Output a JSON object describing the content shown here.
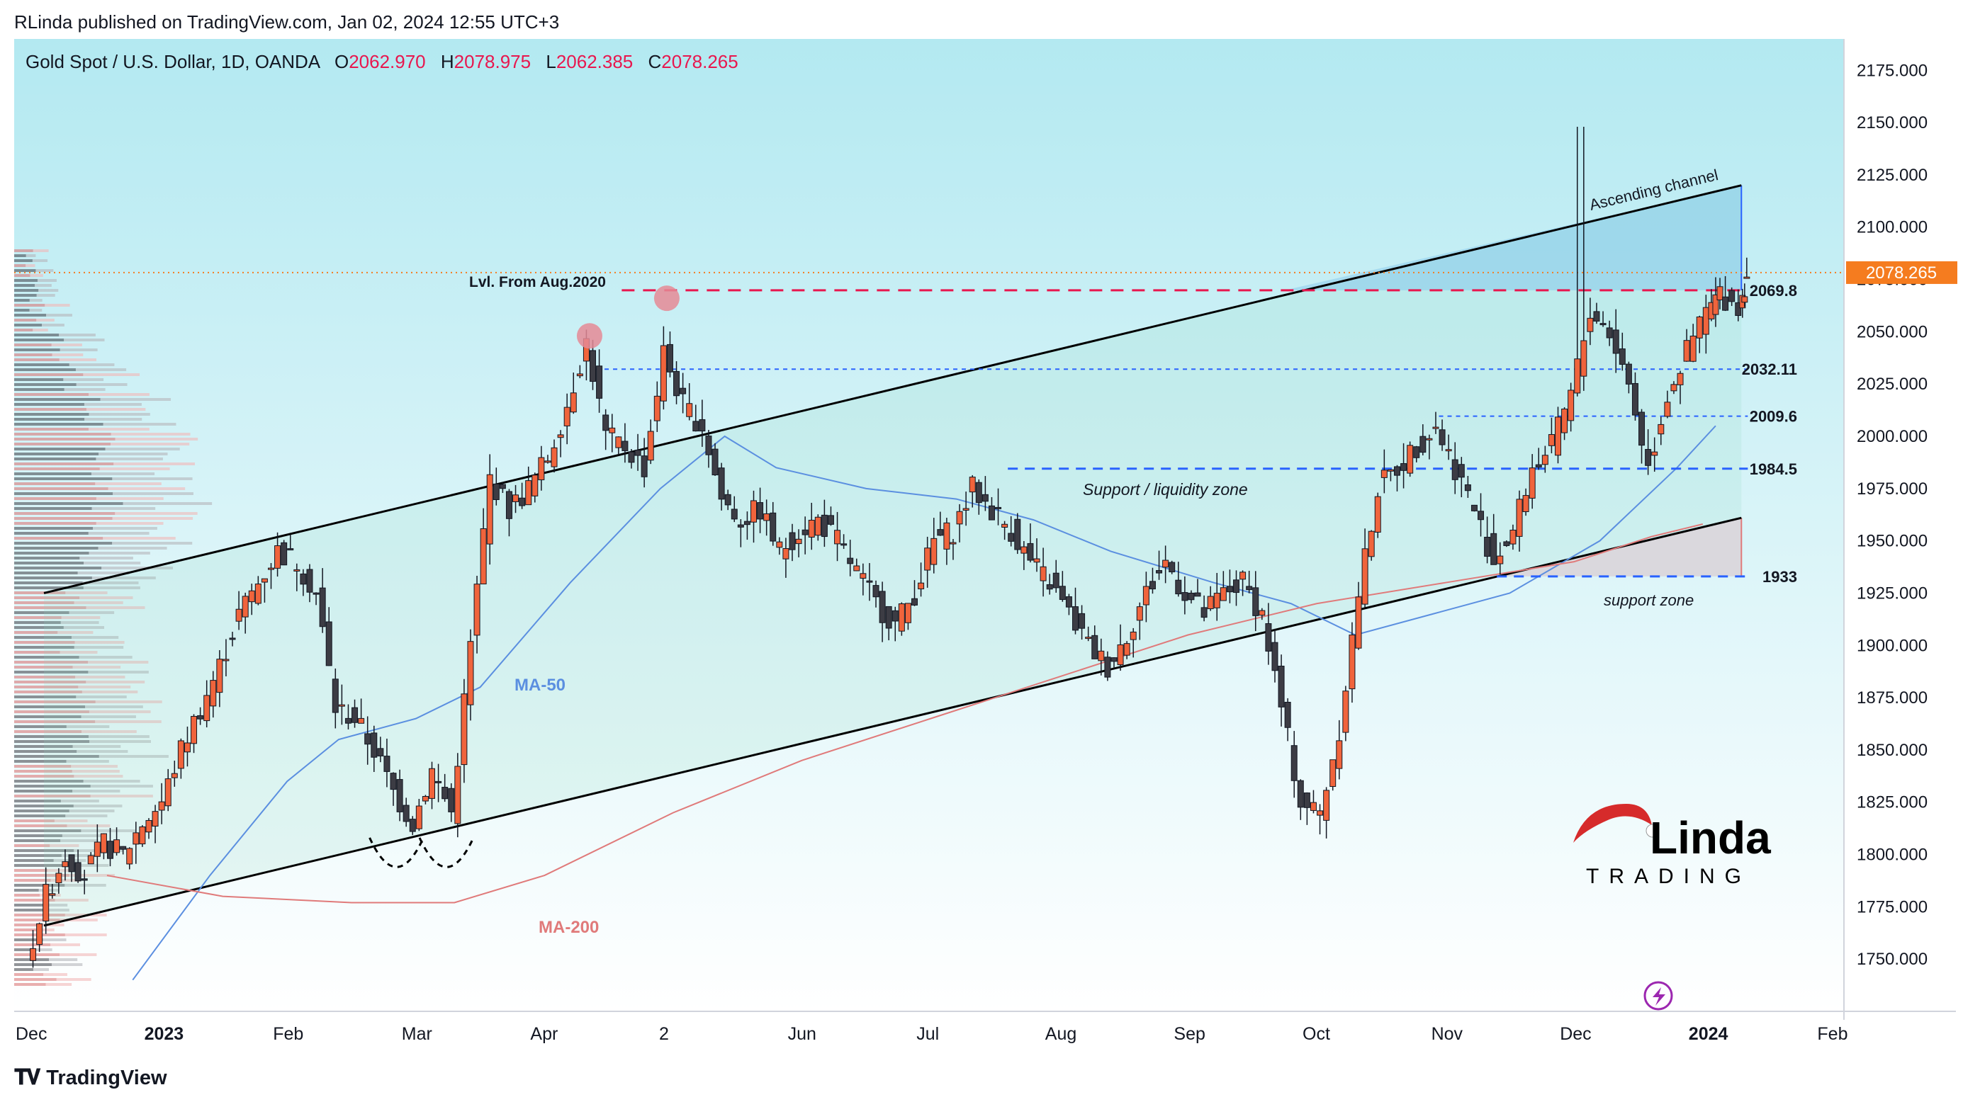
{
  "header": {
    "publisher_line": "RLinda published on TradingView.com, Jan 02, 2024 12:55 UTC+3"
  },
  "legend": {
    "symbol": "Gold Spot / U.S. Dollar, 1D, OANDA",
    "open_label": "O",
    "open": "2062.970",
    "high_label": "H",
    "high": "2078.975",
    "low_label": "L",
    "low": "2062.385",
    "close_label": "C",
    "close": "2078.265"
  },
  "footer": {
    "brand": "TradingView"
  },
  "colors": {
    "up": "#f0643c",
    "down": "#3c3c44",
    "ma50": "#5b8fe0",
    "ma200": "#e07a7a",
    "resistance_red": "#e8174e",
    "support_blue": "#2962ff",
    "price_tag": "#f57c1f",
    "bg_top": "#b3e9f1",
    "bg_bottom": "#ffffff"
  },
  "chart_data": {
    "type": "candlestick",
    "symbol": "XAUUSD",
    "timeframe": "1D",
    "y_axis": {
      "min": 1725,
      "max": 2190,
      "ticks": [
        "2175.000",
        "2150.000",
        "2125.000",
        "2100.000",
        "2075.000",
        "2050.000",
        "2025.000",
        "2000.000",
        "1975.000",
        "1950.000",
        "1925.000",
        "1900.000",
        "1875.000",
        "1850.000",
        "1825.000",
        "1800.000",
        "1775.000",
        "1750.000"
      ]
    },
    "x_axis": {
      "ticks": [
        {
          "label": "Dec",
          "month": 0,
          "bold": false
        },
        {
          "label": "2023",
          "month": 1,
          "bold": true
        },
        {
          "label": "Feb",
          "month": 2,
          "bold": false
        },
        {
          "label": "Mar",
          "month": 3,
          "bold": false
        },
        {
          "label": "Apr",
          "month": 4,
          "bold": false
        },
        {
          "label": "2",
          "month": 5,
          "bold": false
        },
        {
          "label": "Jun",
          "month": 6,
          "bold": false
        },
        {
          "label": "Jul",
          "month": 7,
          "bold": false
        },
        {
          "label": "Aug",
          "month": 8,
          "bold": false
        },
        {
          "label": "Sep",
          "month": 9,
          "bold": false
        },
        {
          "label": "Oct",
          "month": 10,
          "bold": false
        },
        {
          "label": "Nov",
          "month": 11,
          "bold": false
        },
        {
          "label": "Dec",
          "month": 12,
          "bold": false
        },
        {
          "label": "2024",
          "month": 13,
          "bold": true
        },
        {
          "label": "Feb",
          "month": 14,
          "bold": false
        }
      ]
    },
    "last_price": "2078.265",
    "price_path": [
      [
        0.0,
        1750
      ],
      [
        0.15,
        1780
      ],
      [
        0.3,
        1800
      ],
      [
        0.45,
        1790
      ],
      [
        0.6,
        1805
      ],
      [
        0.75,
        1800
      ],
      [
        0.9,
        1815
      ],
      [
        1.05,
        1825
      ],
      [
        1.2,
        1850
      ],
      [
        1.35,
        1870
      ],
      [
        1.5,
        1890
      ],
      [
        1.65,
        1915
      ],
      [
        1.8,
        1930
      ],
      [
        1.95,
        1945
      ],
      [
        2.1,
        1940
      ],
      [
        2.25,
        1925
      ],
      [
        2.4,
        1870
      ],
      [
        2.55,
        1865
      ],
      [
        2.7,
        1850
      ],
      [
        2.85,
        1830
      ],
      [
        3.0,
        1815
      ],
      [
        3.15,
        1840
      ],
      [
        3.3,
        1820
      ],
      [
        3.45,
        1900
      ],
      [
        3.6,
        1980
      ],
      [
        3.75,
        1965
      ],
      [
        3.9,
        1975
      ],
      [
        4.05,
        1990
      ],
      [
        4.2,
        2015
      ],
      [
        4.35,
        2045
      ],
      [
        4.5,
        2000
      ],
      [
        4.65,
        1995
      ],
      [
        4.8,
        1985
      ],
      [
        4.95,
        2040
      ],
      [
        5.1,
        2015
      ],
      [
        5.25,
        2005
      ],
      [
        5.4,
        1970
      ],
      [
        5.55,
        1960
      ],
      [
        5.7,
        1965
      ],
      [
        5.85,
        1945
      ],
      [
        6.0,
        1955
      ],
      [
        6.15,
        1960
      ],
      [
        6.3,
        1950
      ],
      [
        6.45,
        1935
      ],
      [
        6.6,
        1920
      ],
      [
        6.75,
        1910
      ],
      [
        6.9,
        1925
      ],
      [
        7.05,
        1950
      ],
      [
        7.2,
        1955
      ],
      [
        7.35,
        1975
      ],
      [
        7.5,
        1965
      ],
      [
        7.65,
        1955
      ],
      [
        7.8,
        1940
      ],
      [
        7.95,
        1930
      ],
      [
        8.1,
        1915
      ],
      [
        8.25,
        1900
      ],
      [
        8.4,
        1890
      ],
      [
        8.55,
        1905
      ],
      [
        8.7,
        1925
      ],
      [
        8.85,
        1940
      ],
      [
        9.0,
        1925
      ],
      [
        9.15,
        1915
      ],
      [
        9.3,
        1925
      ],
      [
        9.45,
        1930
      ],
      [
        9.6,
        1915
      ],
      [
        9.75,
        1870
      ],
      [
        9.9,
        1825
      ],
      [
        10.05,
        1820
      ],
      [
        10.2,
        1860
      ],
      [
        10.35,
        1925
      ],
      [
        10.5,
        1975
      ],
      [
        10.65,
        1985
      ],
      [
        10.8,
        1995
      ],
      [
        10.95,
        2005
      ],
      [
        11.1,
        1985
      ],
      [
        11.25,
        1965
      ],
      [
        11.4,
        1940
      ],
      [
        11.55,
        1955
      ],
      [
        11.7,
        1985
      ],
      [
        11.85,
        1995
      ],
      [
        12.0,
        2020
      ],
      [
        12.15,
        2060
      ],
      [
        12.3,
        2050
      ],
      [
        12.45,
        2025
      ],
      [
        12.6,
        1985
      ],
      [
        12.75,
        2020
      ],
      [
        12.9,
        2040
      ],
      [
        13.05,
        2060
      ],
      [
        13.15,
        2068
      ],
      [
        13.3,
        2062
      ],
      [
        13.35,
        2078
      ]
    ],
    "moving_averages": [
      {
        "name": "MA-50",
        "color": "#5b8fe0",
        "points": [
          [
            0.8,
            1740
          ],
          [
            1.4,
            1790
          ],
          [
            2.0,
            1835
          ],
          [
            2.4,
            1855
          ],
          [
            3.0,
            1865
          ],
          [
            3.5,
            1880
          ],
          [
            4.2,
            1930
          ],
          [
            4.9,
            1975
          ],
          [
            5.4,
            2000
          ],
          [
            5.8,
            1985
          ],
          [
            6.5,
            1975
          ],
          [
            7.2,
            1970
          ],
          [
            7.8,
            1960
          ],
          [
            8.4,
            1945
          ],
          [
            9.2,
            1930
          ],
          [
            9.8,
            1920
          ],
          [
            10.3,
            1905
          ],
          [
            10.9,
            1915
          ],
          [
            11.5,
            1925
          ],
          [
            12.2,
            1950
          ],
          [
            12.8,
            1985
          ],
          [
            13.1,
            2005
          ]
        ]
      },
      {
        "name": "MA-200",
        "color": "#e07a7a",
        "points": [
          [
            0.6,
            1790
          ],
          [
            1.5,
            1780
          ],
          [
            2.5,
            1777
          ],
          [
            3.3,
            1777
          ],
          [
            4.0,
            1790
          ],
          [
            5.0,
            1820
          ],
          [
            6.0,
            1845
          ],
          [
            7.0,
            1865
          ],
          [
            8.0,
            1885
          ],
          [
            9.0,
            1905
          ],
          [
            10.0,
            1920
          ],
          [
            11.0,
            1930
          ],
          [
            12.0,
            1940
          ],
          [
            12.6,
            1952
          ],
          [
            13.0,
            1958
          ]
        ]
      }
    ],
    "horizontal_levels": [
      {
        "label": "2069.8",
        "value": 2069.8,
        "style": "red-dashed"
      },
      {
        "label": "2032.11",
        "value": 2032.11,
        "style": "blue-dotted"
      },
      {
        "label": "2009.6",
        "value": 2009.6,
        "style": "blue-dotted"
      },
      {
        "label": "1984.5",
        "value": 1984.5,
        "style": "blue-dashed"
      },
      {
        "label": "1933",
        "value": 1933,
        "style": "blue-dashed"
      }
    ],
    "annotations": {
      "ascending_channel": "Ascending channel",
      "level_aug2020": "Lvl. From Aug.2020",
      "support_liquidity": "Support / liquidity zone",
      "support_zone": "support zone",
      "ma50_label": "MA-50",
      "ma200_label": "MA-200"
    },
    "logo": {
      "top": "Linda",
      "bottom": "TRADING"
    }
  }
}
